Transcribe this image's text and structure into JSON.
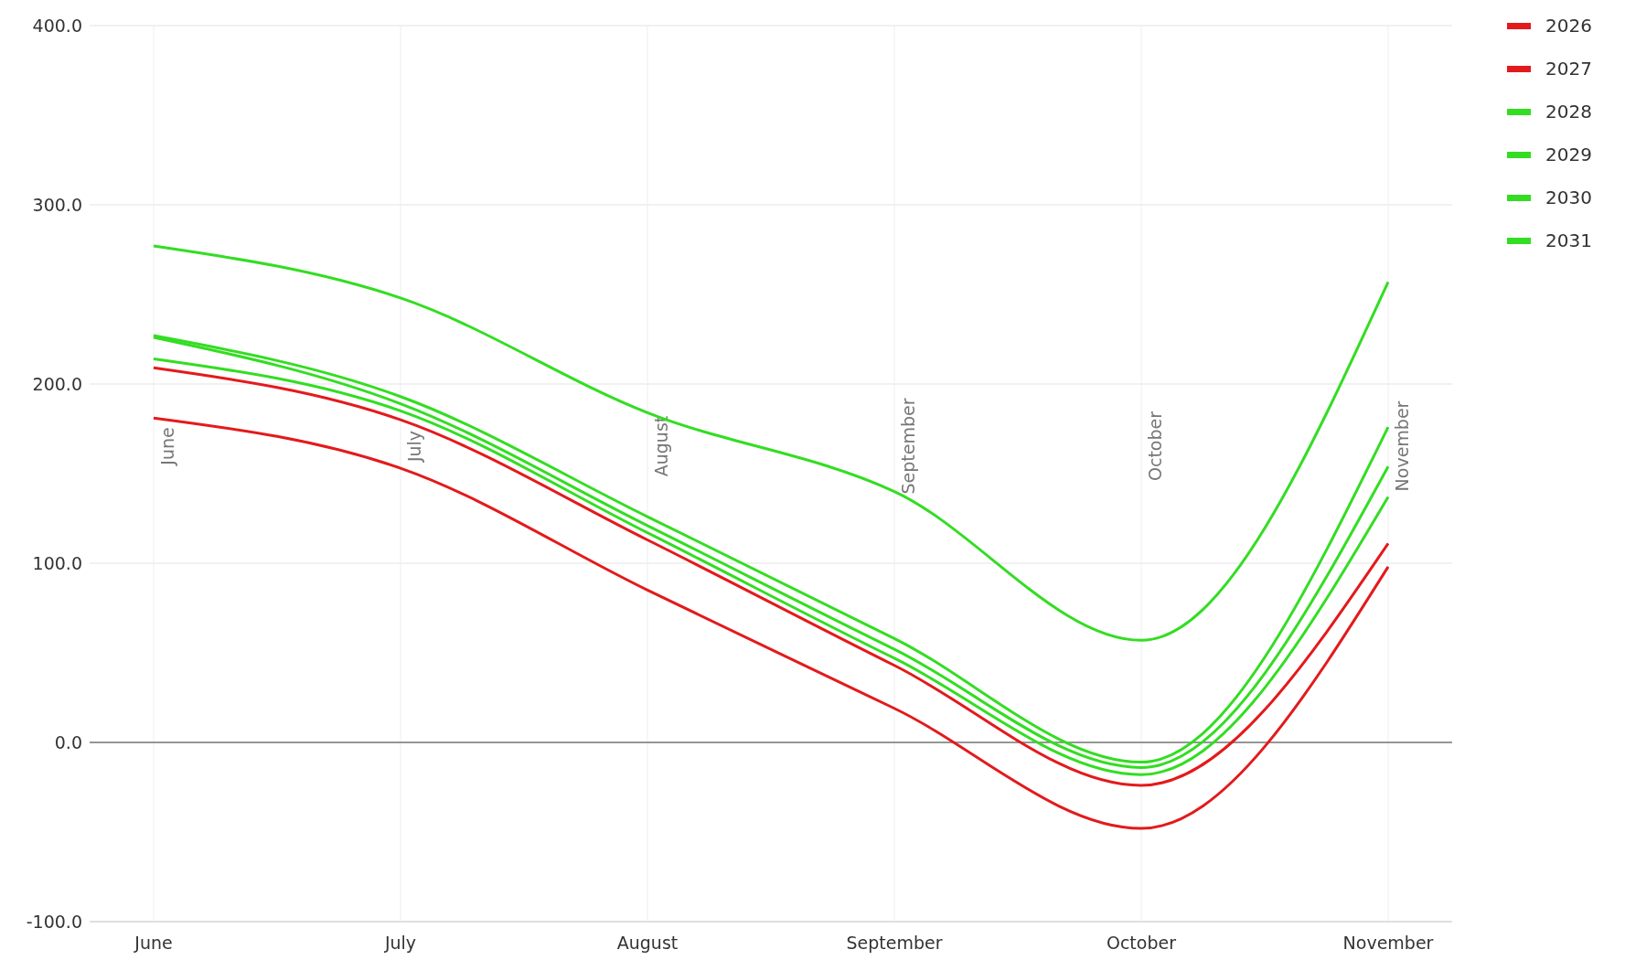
{
  "chart_data": {
    "type": "line",
    "categories": [
      "June",
      "July",
      "August",
      "September",
      "October",
      "November"
    ],
    "series": [
      {
        "name": "2026",
        "color": "#e31a1c",
        "values": [
          181,
          153,
          85,
          19,
          -48,
          98
        ]
      },
      {
        "name": "2027",
        "color": "#e31a1c",
        "values": [
          209,
          180,
          113,
          43,
          -24,
          111
        ]
      },
      {
        "name": "2028",
        "color": "#33dd22",
        "values": [
          214,
          185,
          117,
          47,
          -18,
          137
        ]
      },
      {
        "name": "2029",
        "color": "#33dd22",
        "values": [
          226,
          189,
          121,
          52,
          -14,
          154
        ]
      },
      {
        "name": "2030",
        "color": "#33dd22",
        "values": [
          227,
          193,
          126,
          58,
          -11,
          176
        ]
      },
      {
        "name": "2031",
        "color": "#33dd22",
        "values": [
          277,
          248,
          184,
          140,
          57,
          257
        ]
      }
    ],
    "ylim": [
      -100,
      400
    ],
    "yticks": [
      {
        "value": -100,
        "label": "-100.0"
      },
      {
        "value": 0,
        "label": "0.0"
      },
      {
        "value": 100,
        "label": "100.0"
      },
      {
        "value": 200,
        "label": "200.0"
      },
      {
        "value": 300,
        "label": "300.0"
      },
      {
        "value": 400,
        "label": "400.0"
      }
    ],
    "ref_lines": [
      {
        "axis": "y",
        "value": 0,
        "color": "#777777"
      }
    ],
    "annotations": [
      "June",
      "July",
      "August",
      "September",
      "October",
      "November"
    ],
    "grid": true,
    "legend": "top right",
    "marker": "none",
    "line_style": "solid"
  }
}
